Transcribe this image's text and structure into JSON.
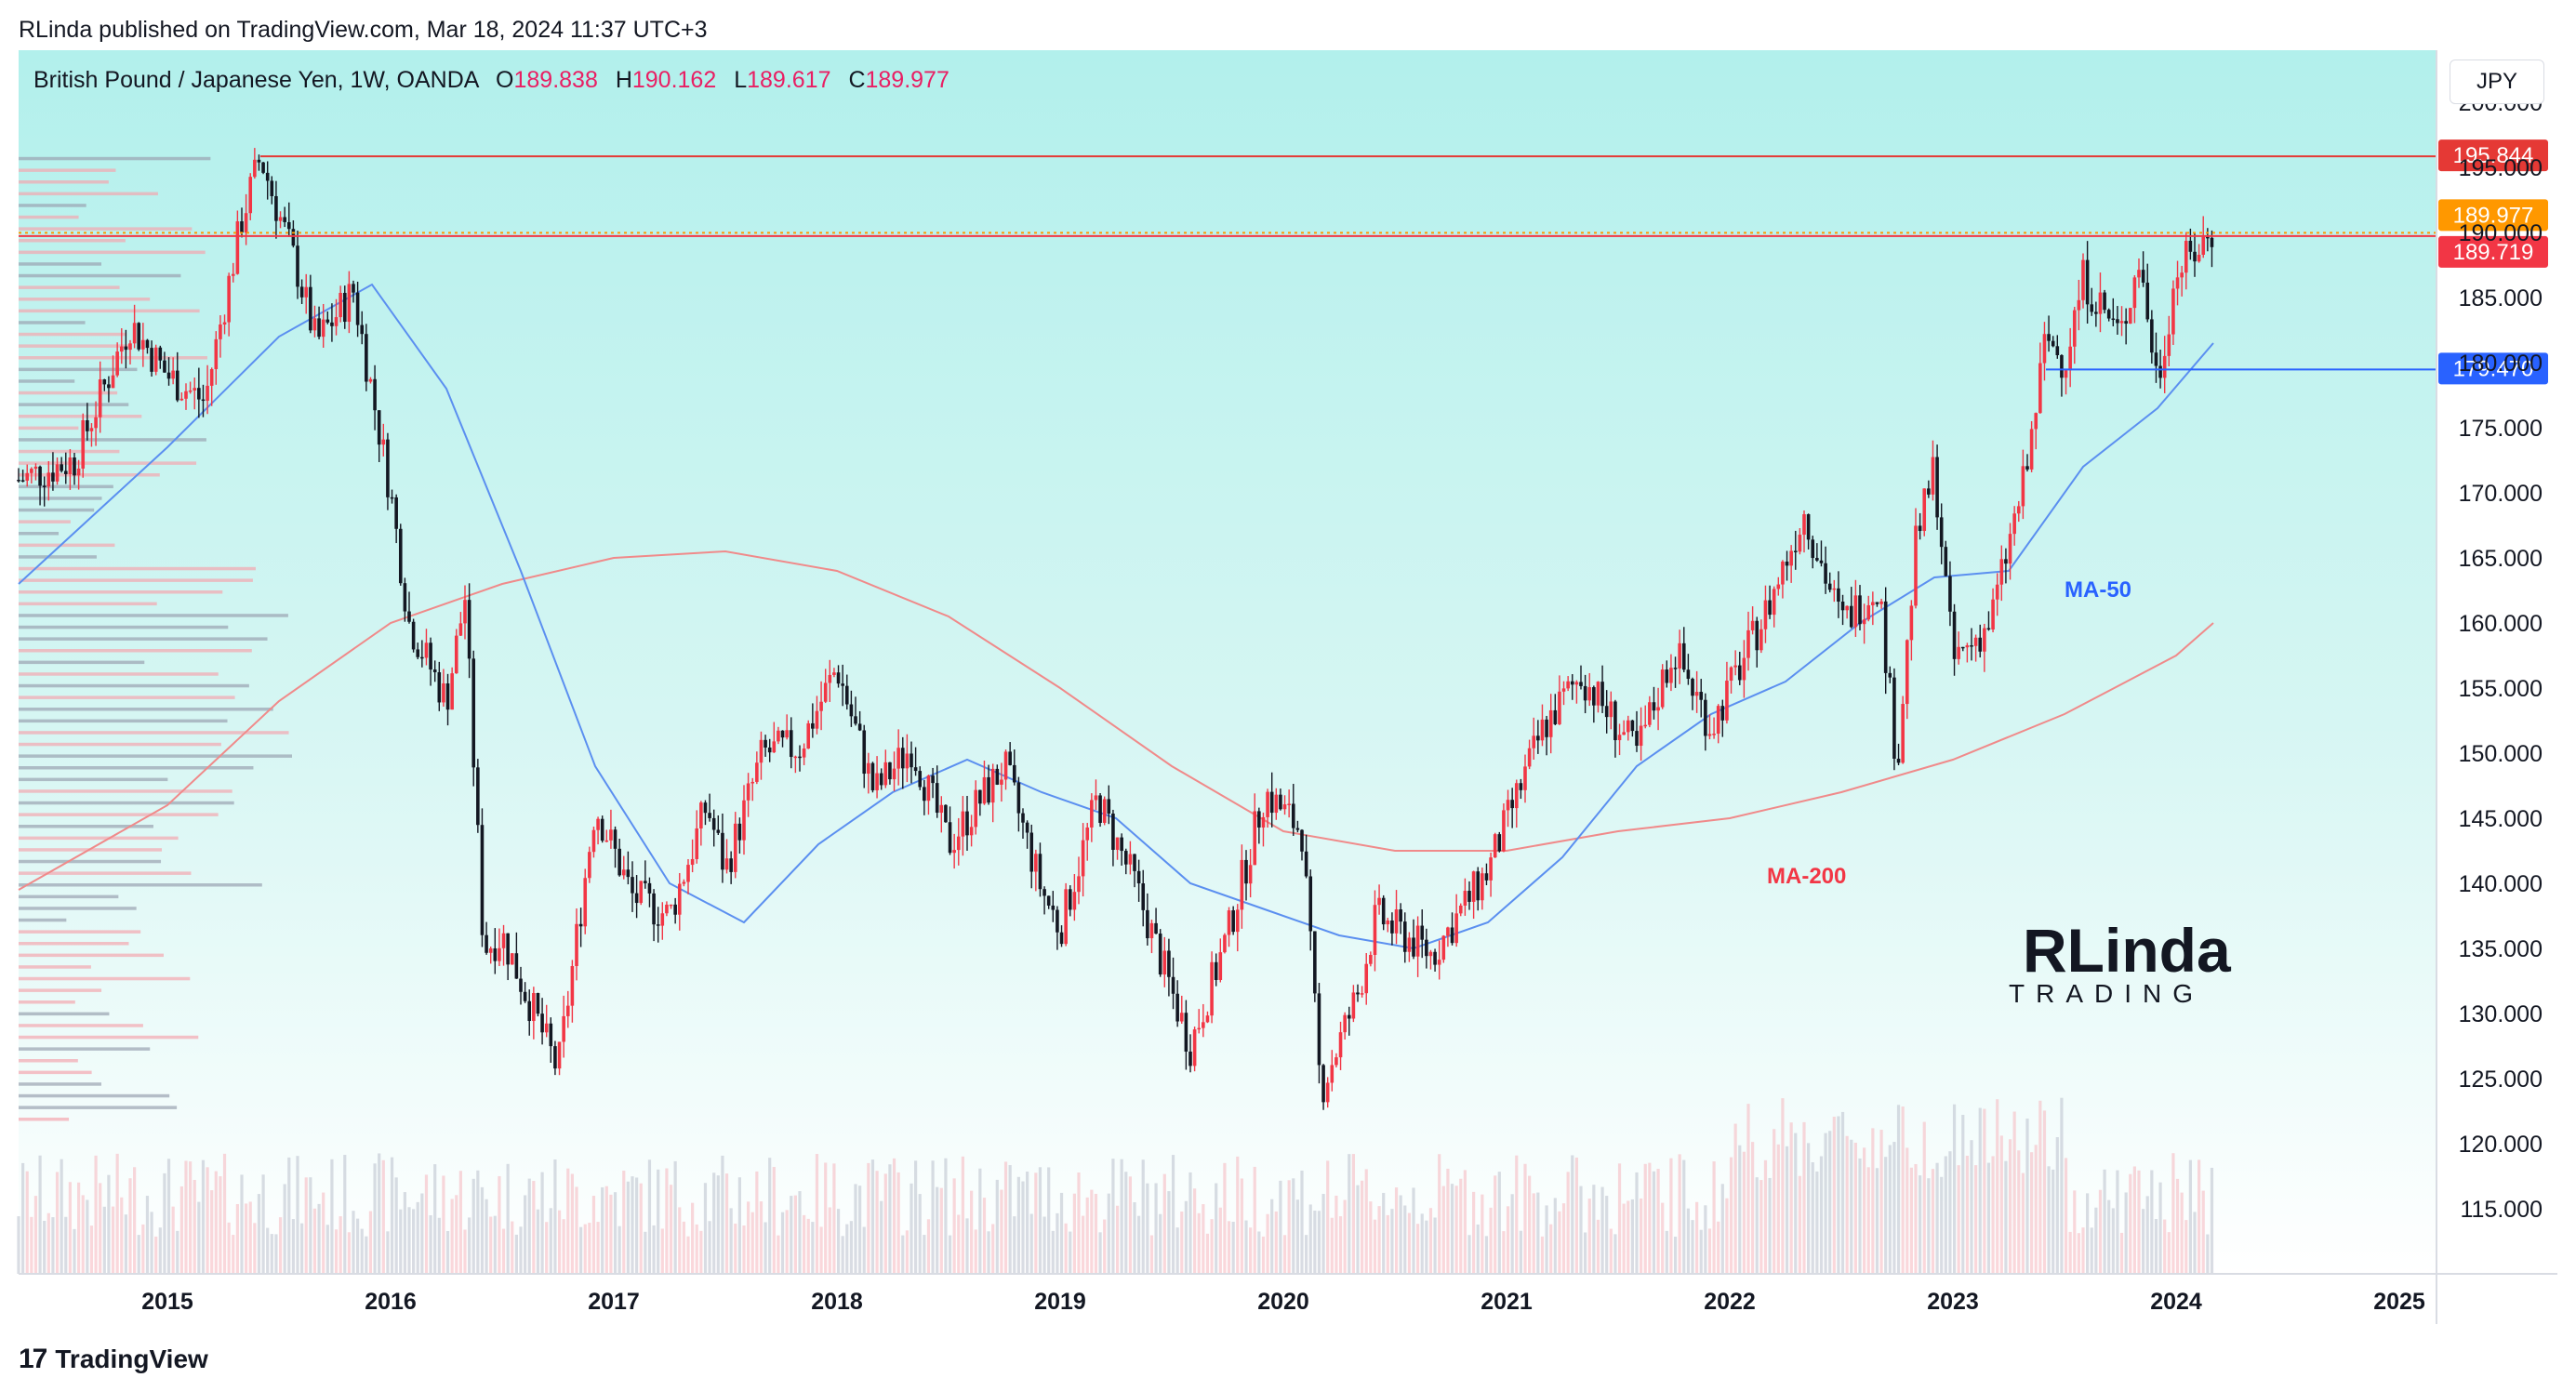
{
  "published": "RLinda published on TradingView.com, Mar 18, 2024 11:37 UTC+3",
  "footer": {
    "brand": "TradingView"
  },
  "watermark": {
    "line1": "RLinda",
    "line2": "TRADING"
  },
  "legend": {
    "symbol": "British Pound / Japanese Yen, 1W, OANDA",
    "open_label": "O",
    "open": "189.838",
    "high_label": "H",
    "high": "190.162",
    "low_label": "L",
    "low": "189.617",
    "close_label": "C",
    "close": "189.977"
  },
  "currency": "JPY",
  "chart_data": {
    "type": "candlestick",
    "symbol": "British Pound / Japanese Yen",
    "interval": "1W",
    "source": "OANDA",
    "xlim": [
      "2014-05",
      "2025-03"
    ],
    "ylim": [
      110,
      204
    ],
    "y_ticks": [
      115,
      120,
      125,
      130,
      135,
      140,
      145,
      150,
      155,
      160,
      165,
      170,
      175,
      180,
      185,
      190,
      195,
      200
    ],
    "y_tick_labels": [
      "115.000",
      "120.000",
      "125.000",
      "130.000",
      "135.000",
      "140.000",
      "145.000",
      "150.000",
      "155.000",
      "160.000",
      "165.000",
      "170.000",
      "175.000",
      "180.000",
      "185.000",
      "190.000",
      "195.000",
      "200.000"
    ],
    "x_ticks": [
      "2015",
      "2016",
      "2017",
      "2018",
      "2019",
      "2020",
      "2021",
      "2022",
      "2023",
      "2024",
      "2025"
    ],
    "price_path": [
      [
        "2014-05",
        171.0
      ],
      [
        "2014-08",
        172.5
      ],
      [
        "2014-11",
        183.0
      ],
      [
        "2015-01",
        179.0
      ],
      [
        "2015-03",
        177.0
      ],
      [
        "2015-05",
        191.0
      ],
      [
        "2015-06",
        195.8
      ],
      [
        "2015-08",
        187.0
      ],
      [
        "2015-09",
        181.5
      ],
      [
        "2015-11",
        185.5
      ],
      [
        "2016-01",
        170.0
      ],
      [
        "2016-02",
        160.0
      ],
      [
        "2016-04",
        154.0
      ],
      [
        "2016-05",
        162.0
      ],
      [
        "2016-06",
        135.0
      ],
      [
        "2016-07",
        136.0
      ],
      [
        "2016-10",
        125.6
      ],
      [
        "2016-12",
        146.0
      ],
      [
        "2017-02",
        139.0
      ],
      [
        "2017-04",
        137.5
      ],
      [
        "2017-06",
        146.0
      ],
      [
        "2017-07",
        141.0
      ],
      [
        "2017-09",
        150.0
      ],
      [
        "2017-11",
        150.5
      ],
      [
        "2018-01",
        156.6
      ],
      [
        "2018-03",
        147.0
      ],
      [
        "2018-05",
        150.5
      ],
      [
        "2018-07",
        143.0
      ],
      [
        "2018-10",
        149.0
      ],
      [
        "2018-12",
        139.5
      ],
      [
        "2019-01",
        136.5
      ],
      [
        "2019-03",
        146.5
      ],
      [
        "2019-05",
        140.0
      ],
      [
        "2019-08",
        127.5
      ],
      [
        "2019-10",
        136.0
      ],
      [
        "2019-12",
        147.0
      ],
      [
        "2020-02",
        144.0
      ],
      [
        "2020-03",
        124.0
      ],
      [
        "2020-05",
        131.5
      ],
      [
        "2020-06",
        137.5
      ],
      [
        "2020-09",
        134.5
      ],
      [
        "2020-12",
        141.0
      ],
      [
        "2021-03",
        152.0
      ],
      [
        "2021-05",
        156.0
      ],
      [
        "2021-08",
        150.0
      ],
      [
        "2021-10",
        158.0
      ],
      [
        "2021-12",
        152.0
      ],
      [
        "2022-03",
        161.0
      ],
      [
        "2022-05",
        168.5
      ],
      [
        "2022-07",
        160.0
      ],
      [
        "2022-09",
        163.0
      ],
      [
        "2022-10",
        149.0
      ],
      [
        "2022-11",
        166.0
      ],
      [
        "2022-12",
        172.0
      ],
      [
        "2023-01",
        157.0
      ],
      [
        "2023-03",
        160.0
      ],
      [
        "2023-05",
        172.0
      ],
      [
        "2023-06",
        182.0
      ],
      [
        "2023-07",
        180.0
      ],
      [
        "2023-08",
        186.5
      ],
      [
        "2023-10",
        182.0
      ],
      [
        "2023-11",
        188.0
      ],
      [
        "2023-12",
        178.5
      ],
      [
        "2024-01",
        187.0
      ],
      [
        "2024-03",
        190.0
      ]
    ],
    "ma50": {
      "name": "MA-50",
      "points": [
        [
          "2014-05",
          163.0
        ],
        [
          "2015-01",
          173.5
        ],
        [
          "2015-07",
          182.0
        ],
        [
          "2015-12",
          186.0
        ],
        [
          "2016-04",
          178.0
        ],
        [
          "2016-08",
          164.0
        ],
        [
          "2016-12",
          149.0
        ],
        [
          "2017-04",
          140.0
        ],
        [
          "2017-08",
          137.0
        ],
        [
          "2017-12",
          143.0
        ],
        [
          "2018-04",
          147.0
        ],
        [
          "2018-08",
          149.5
        ],
        [
          "2018-12",
          147.0
        ],
        [
          "2019-04",
          145.0
        ],
        [
          "2019-08",
          140.0
        ],
        [
          "2019-12",
          138.0
        ],
        [
          "2020-04",
          136.0
        ],
        [
          "2020-08",
          135.0
        ],
        [
          "2020-12",
          137.0
        ],
        [
          "2021-04",
          142.0
        ],
        [
          "2021-08",
          149.0
        ],
        [
          "2021-12",
          153.0
        ],
        [
          "2022-04",
          155.5
        ],
        [
          "2022-08",
          160.0
        ],
        [
          "2022-12",
          163.5
        ],
        [
          "2023-04",
          164.0
        ],
        [
          "2023-08",
          172.0
        ],
        [
          "2023-12",
          176.5
        ],
        [
          "2024-03",
          181.5
        ]
      ]
    },
    "ma200": {
      "name": "MA-200",
      "points": [
        [
          "2014-05",
          139.5
        ],
        [
          "2015-01",
          146.0
        ],
        [
          "2015-07",
          154.0
        ],
        [
          "2016-01",
          160.0
        ],
        [
          "2016-07",
          163.0
        ],
        [
          "2017-01",
          165.0
        ],
        [
          "2017-07",
          165.5
        ],
        [
          "2018-01",
          164.0
        ],
        [
          "2018-07",
          160.5
        ],
        [
          "2019-01",
          155.0
        ],
        [
          "2019-07",
          149.0
        ],
        [
          "2020-01",
          144.0
        ],
        [
          "2020-07",
          142.5
        ],
        [
          "2021-01",
          142.5
        ],
        [
          "2021-07",
          144.0
        ],
        [
          "2022-01",
          145.0
        ],
        [
          "2022-07",
          147.0
        ],
        [
          "2023-01",
          149.5
        ],
        [
          "2023-07",
          153.0
        ],
        [
          "2024-01",
          157.5
        ],
        [
          "2024-03",
          160.0
        ]
      ]
    },
    "levels": [
      {
        "value": 195.844,
        "label": "195.844",
        "color": "#e53935"
      },
      {
        "value": 189.977,
        "label": "189.977",
        "color": "#ff9800"
      },
      {
        "value": 189.719,
        "label": "189.719",
        "color": "#f23645"
      },
      {
        "value": 179.47,
        "label": "179.470",
        "color": "#2962ff"
      }
    ],
    "annotations": [
      {
        "text": "MA-50",
        "x": "2023-07",
        "y": 162,
        "color": "#2962ff"
      },
      {
        "text": "MA-200",
        "x": "2022-03",
        "y": 140,
        "color": "#f23645"
      }
    ],
    "colors": {
      "up": "#f23645",
      "down": "#131722",
      "ma50": "#5b8ff0",
      "ma200": "#f08a8a",
      "bg_top": "#b2f0ec",
      "bg_bottom": "#ffffff"
    },
    "volume_profile": true,
    "volume_bars": true
  }
}
